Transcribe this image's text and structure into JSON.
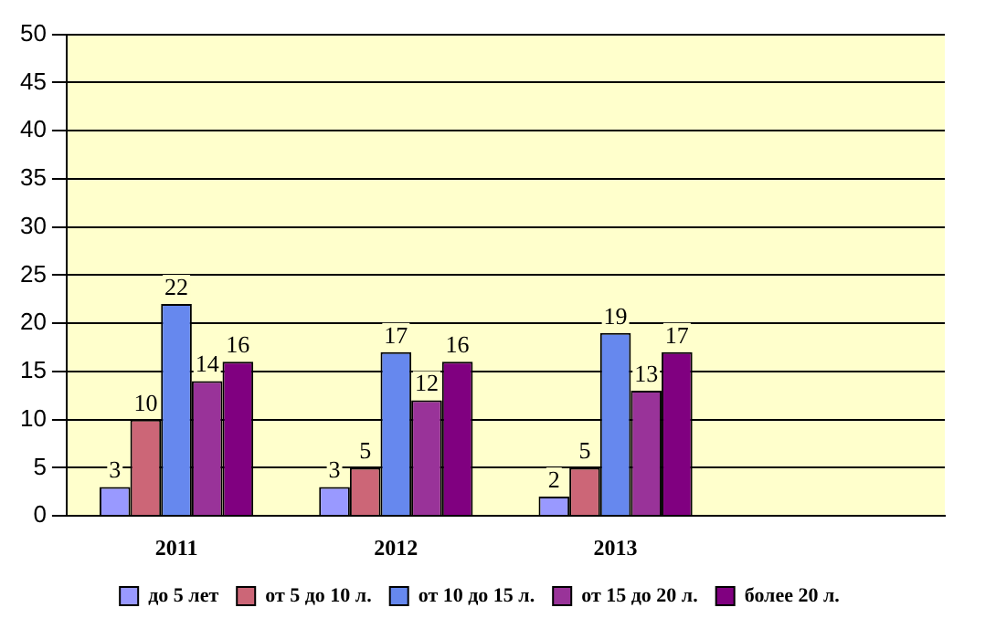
{
  "chart_data": {
    "type": "bar",
    "categories": [
      "2011",
      "2012",
      "2013",
      null
    ],
    "series": [
      {
        "name": "до 5 лет",
        "color": "#9999ff",
        "values": [
          3,
          3,
          2,
          null
        ]
      },
      {
        "name": "от 5 до 10 л.",
        "color": "#cc6677",
        "values": [
          10,
          5,
          5,
          null
        ]
      },
      {
        "name": "от 10 до 15 л.",
        "color": "#6688ee",
        "values": [
          22,
          17,
          19,
          null
        ]
      },
      {
        "name": "от 15 до 20 л.",
        "color": "#993399",
        "values": [
          14,
          12,
          13,
          null
        ]
      },
      {
        "name": "более 20 л.",
        "color": "#800080",
        "values": [
          16,
          16,
          17,
          null
        ]
      }
    ],
    "ylim": [
      0,
      50
    ],
    "yticks": [
      0,
      5,
      10,
      15,
      20,
      25,
      30,
      35,
      40,
      45,
      50
    ],
    "grid": "y",
    "legend": "bottom",
    "data_labels": true
  }
}
